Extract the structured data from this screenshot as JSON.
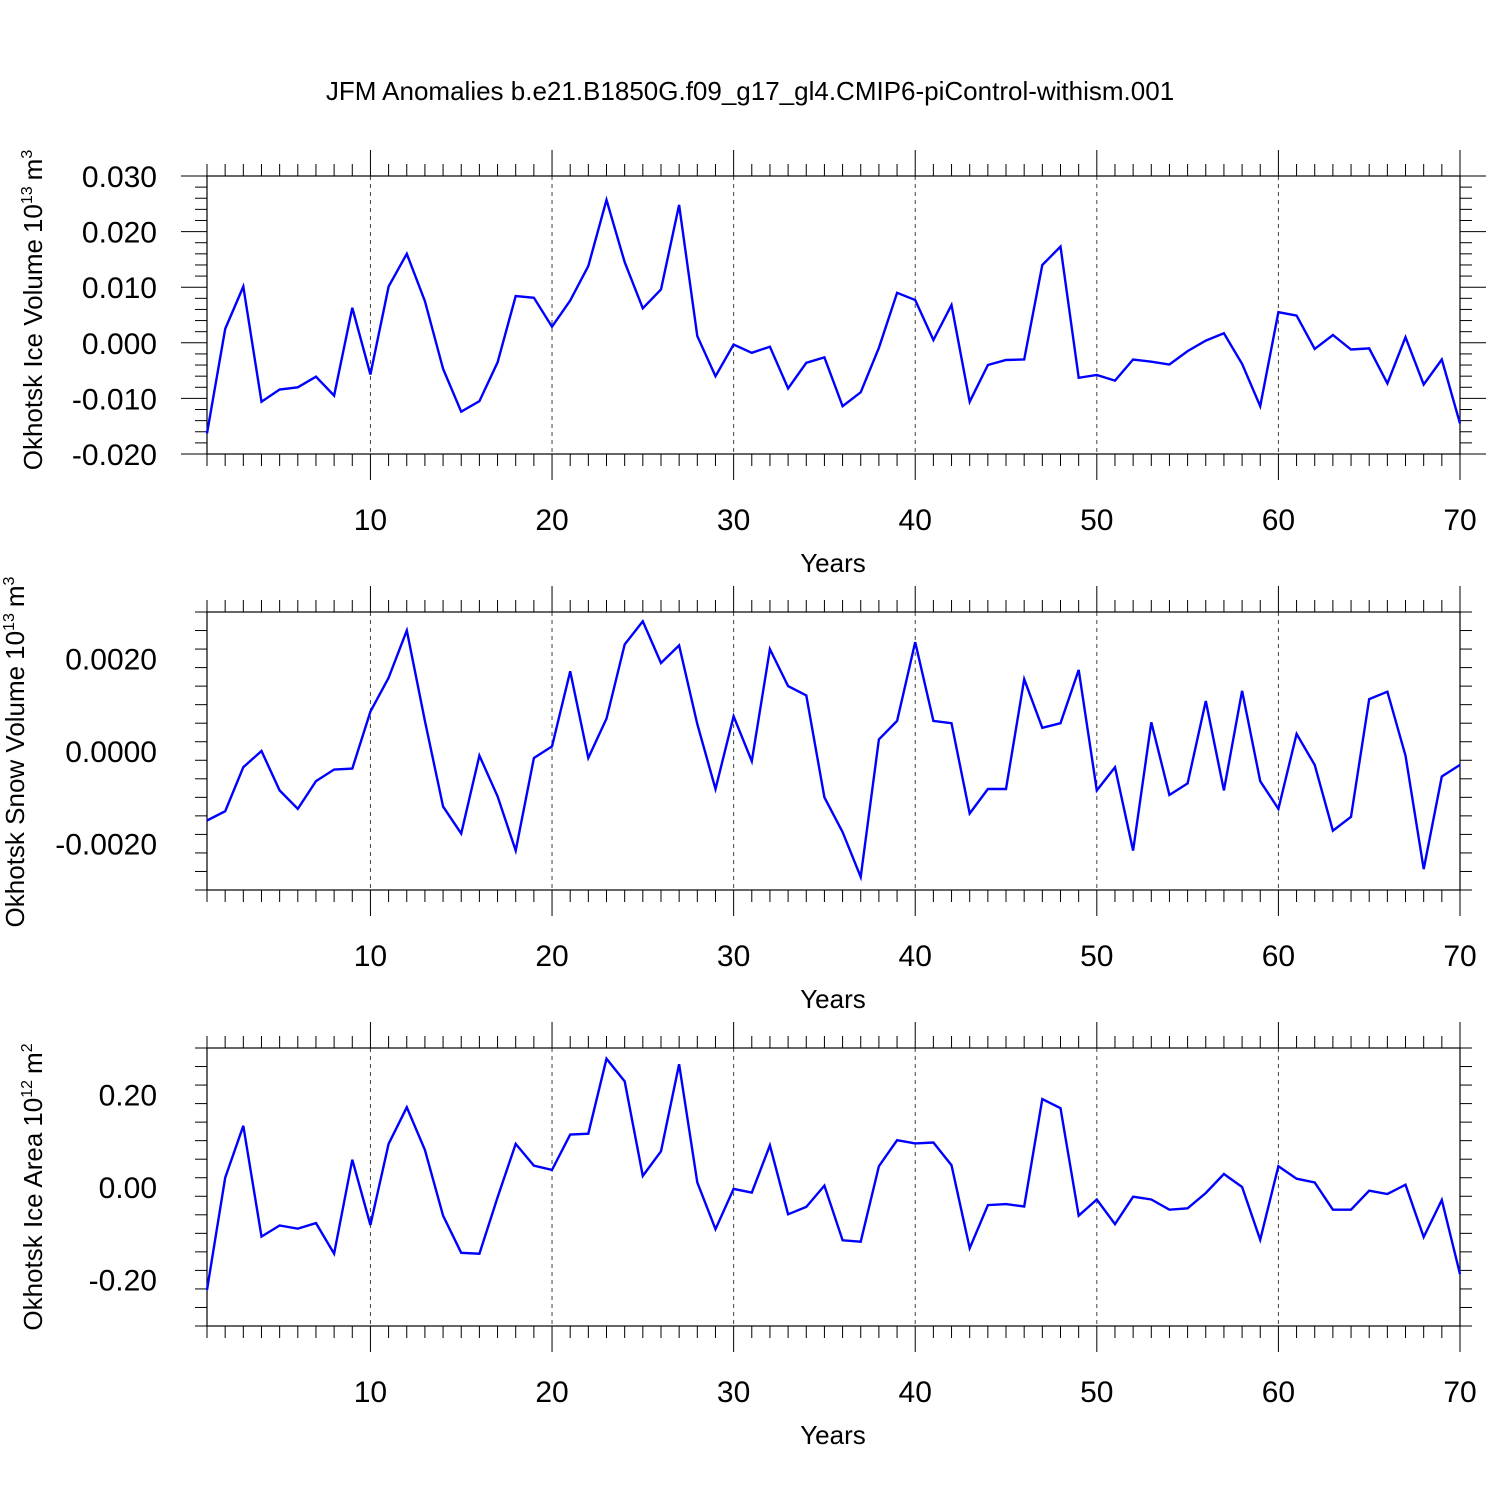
{
  "title": "JFM Anomalies b.e21.B1850G.f09_g17_gl4.CMIP6-piControl-withism.001",
  "line_color": "#0000ff",
  "chart_data": [
    {
      "type": "line",
      "name": "ice-volume",
      "ylabel": "Okhotsk Ice Volume",
      "yunit_pre": "10",
      "yunit_exp": "13",
      "yunit_post": "m",
      "yunit_post_exp": "3",
      "xlabel": "Years",
      "xlim": [
        1,
        70
      ],
      "ylim": [
        -0.02,
        0.03
      ],
      "yticks": [
        -0.02,
        -0.01,
        0.0,
        0.01,
        0.02,
        0.03
      ],
      "ytick_labels": [
        "-0.020",
        "-0.010",
        "0.000",
        "0.010",
        "0.020",
        "0.030"
      ],
      "xticks": [
        10,
        20,
        30,
        40,
        50,
        60,
        70
      ],
      "xtick_labels": [
        "10",
        "20",
        "30",
        "40",
        "50",
        "60",
        "70"
      ],
      "values": [
        -0.0163,
        0.0025,
        0.0101,
        -0.0106,
        -0.0084,
        -0.008,
        -0.0061,
        -0.0095,
        0.0063,
        -0.0057,
        0.0101,
        0.016,
        0.0075,
        -0.0047,
        -0.0124,
        -0.0105,
        -0.0035,
        0.0084,
        0.0081,
        0.0029,
        0.0076,
        0.0138,
        0.0257,
        0.0145,
        0.0062,
        0.0096,
        0.0248,
        0.0012,
        -0.006,
        -0.0003,
        -0.0018,
        -0.0007,
        -0.0082,
        -0.0036,
        -0.0026,
        -0.0114,
        -0.0089,
        -0.0009,
        0.009,
        0.0077,
        0.0005,
        0.0068,
        -0.0106,
        -0.004,
        -0.0031,
        -0.003,
        0.014,
        0.0173,
        -0.0063,
        -0.0058,
        -0.0068,
        -0.003,
        -0.0034,
        -0.0039,
        -0.0015,
        0.0004,
        0.0017,
        -0.0038,
        -0.0114,
        0.0055,
        0.0049,
        -0.0011,
        0.0014,
        -0.0012,
        -0.001,
        -0.0073,
        0.001,
        -0.0075,
        -0.003,
        -0.0145
      ]
    },
    {
      "type": "line",
      "name": "snow-volume",
      "ylabel": "Okhotsk Snow Volume",
      "yunit_pre": "10",
      "yunit_exp": "13",
      "yunit_post": "m",
      "yunit_post_exp": "3",
      "xlabel": "Years",
      "xlim": [
        1,
        70
      ],
      "ylim": [
        -0.003,
        0.003
      ],
      "yticks": [
        -0.002,
        0.0,
        0.002
      ],
      "ytick_labels": [
        "-0.0020",
        "0.0000",
        "0.0020"
      ],
      "xticks": [
        10,
        20,
        30,
        40,
        50,
        60,
        70
      ],
      "xtick_labels": [
        "10",
        "20",
        "30",
        "40",
        "50",
        "60",
        "70"
      ],
      "values": [
        -0.0015,
        -0.0013,
        -0.00035,
        0.0,
        -0.00085,
        -0.00125,
        -0.00065,
        -0.0004,
        -0.00038,
        0.00085,
        0.00158,
        0.0026,
        0.00065,
        -0.0012,
        -0.00178,
        -0.0001,
        -0.00098,
        -0.00215,
        -0.00015,
        0.0001,
        0.00172,
        -0.00015,
        0.0007,
        0.0023,
        0.0028,
        0.0019,
        0.00228,
        0.00058,
        -0.00082,
        0.00075,
        -0.00022,
        0.0022,
        0.0014,
        0.0012,
        -0.001,
        -0.00175,
        -0.00272,
        0.00025,
        0.00065,
        0.00235,
        0.00065,
        0.0006,
        -0.00135,
        -0.00082,
        -0.00082,
        0.00155,
        0.0005,
        0.0006,
        0.00175,
        -0.00085,
        -0.00035,
        -0.00215,
        0.00062,
        -0.00095,
        -0.0007,
        0.00108,
        -0.00085,
        0.0013,
        -0.00065,
        -0.00125,
        0.00037,
        -0.0003,
        -0.00172,
        -0.00142,
        0.00112,
        0.00128,
        -0.0001,
        -0.00255,
        -0.00055,
        -0.0003
      ]
    },
    {
      "type": "line",
      "name": "ice-area",
      "ylabel": "Okhotsk Ice Area",
      "yunit_pre": "10",
      "yunit_exp": "12",
      "yunit_post": "m",
      "yunit_post_exp": "2",
      "xlabel": "Years",
      "xlim": [
        1,
        70
      ],
      "ylim": [
        -0.3,
        0.3
      ],
      "yticks": [
        -0.2,
        0.0,
        0.2
      ],
      "ytick_labels": [
        "-0.20",
        "0.00",
        "0.20"
      ],
      "xticks": [
        10,
        20,
        30,
        40,
        50,
        60,
        70
      ],
      "xtick_labels": [
        "10",
        "20",
        "30",
        "40",
        "50",
        "60",
        "70"
      ],
      "values": [
        -0.222,
        0.02,
        0.132,
        -0.107,
        -0.083,
        -0.09,
        -0.078,
        -0.144,
        0.059,
        -0.082,
        0.093,
        0.172,
        0.08,
        -0.062,
        -0.142,
        -0.144,
        -0.022,
        0.093,
        0.046,
        0.037,
        0.113,
        0.115,
        0.277,
        0.228,
        0.024,
        0.077,
        0.265,
        0.01,
        -0.091,
        -0.004,
        -0.012,
        0.09,
        -0.059,
        -0.043,
        0.003,
        -0.115,
        -0.118,
        0.045,
        0.101,
        0.094,
        0.096,
        0.047,
        -0.132,
        -0.039,
        -0.037,
        -0.042,
        0.19,
        0.17,
        -0.062,
        -0.027,
        -0.08,
        -0.021,
        -0.027,
        -0.049,
        -0.046,
        -0.013,
        0.028,
        0,
        -0.114,
        0.045,
        0.018,
        0.01,
        -0.049,
        -0.049,
        -0.008,
        -0.015,
        0.005,
        -0.108,
        -0.028,
        -0.188
      ]
    }
  ]
}
